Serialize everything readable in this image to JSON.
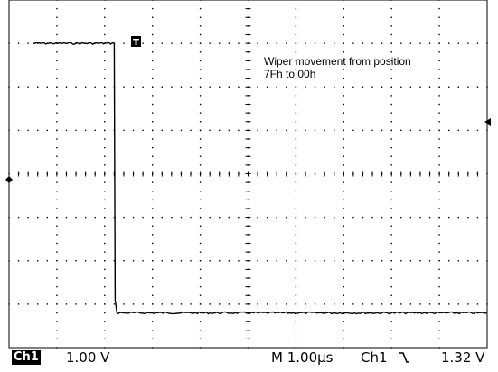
{
  "annotation": {
    "line1": "Wiper movement from position",
    "line2": "7Fh to 00h"
  },
  "trigger_marker": "T",
  "readouts": {
    "channel_badge": "Ch1",
    "volts_per_div": "1.00 V",
    "timebase": "M 1.00µs",
    "trigger_channel": "Ch1",
    "trigger_slope_icon": "falling-edge-icon",
    "trigger_slope_glyph": "⿺",
    "trigger_level": "1.32 V"
  },
  "waveform": {
    "grid_divisions_x": 10,
    "grid_divisions_y": 8,
    "high_level_div": 3,
    "low_level_div": -3.2,
    "transition_time_div": -2.8,
    "capture_start_div": -4.5
  },
  "colors": {
    "trace": "#000000",
    "grid": "#000000",
    "background": "#ffffff"
  }
}
